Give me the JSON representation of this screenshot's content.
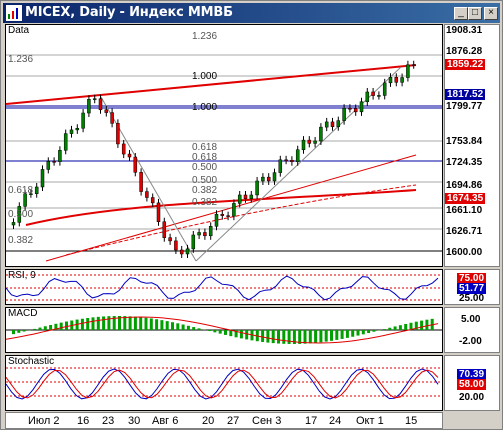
{
  "window": {
    "title": "MICEX, Daily - Индекс ММВБ",
    "buttons": {
      "minimize": "_",
      "maximize": "□",
      "close": "×"
    }
  },
  "price_panel": {
    "label": "Data",
    "price_ticks": [
      "1908.31",
      "1876.28",
      "1817.52",
      "1799.77",
      "1753.84",
      "1724.35",
      "1694.86",
      "1661.10",
      "1626.71",
      "1600.00"
    ],
    "highlight_levels": [
      {
        "text": "1859.22",
        "color": "#e00000"
      },
      {
        "text": "1817.52",
        "color": "#0000a0"
      },
      {
        "text": "1674.35",
        "color": "#e00000"
      }
    ],
    "fib_labels": [
      "1.236",
      "1.236",
      "1.000",
      "1.000",
      "0.618",
      "0.500",
      "0.500",
      "0.382",
      "0.382",
      "0.618",
      "0.382",
      "0.500",
      "0.618"
    ]
  },
  "rsi_panel": {
    "label": "RSI, 9",
    "ticks": [
      "75.00",
      "51.77",
      "25.00"
    ],
    "current_color": "#0000c0"
  },
  "macd_panel": {
    "label": "MACD",
    "ticks": [
      "5.00",
      "-2.00"
    ]
  },
  "stoch_panel": {
    "label": "Stochastic",
    "ticks": [
      "70.39",
      "58.00",
      "20.00"
    ]
  },
  "x_axis": {
    "labels": [
      "Июл 2",
      "16",
      "23",
      "30",
      "Авг 6",
      "20",
      "27",
      "Сен 3",
      "17",
      "24",
      "Окт 1",
      "15"
    ]
  },
  "colors": {
    "up": "#008000",
    "down": "#e00000",
    "grid": "#aaaaaa",
    "bluehl": "#0000a0",
    "redhl": "#e00000"
  }
}
